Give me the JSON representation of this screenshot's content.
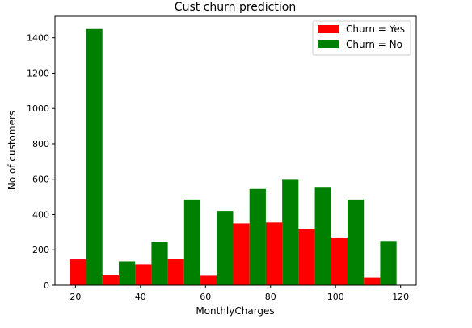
{
  "chart_data": {
    "type": "bar",
    "title": "Cust churn prediction",
    "xlabel": "MonthlyCharges",
    "ylabel": "No of customers",
    "xlim": [
      13.7,
      124.8
    ],
    "ylim": [
      0,
      1522
    ],
    "xticks": [
      20,
      40,
      60,
      80,
      100,
      120
    ],
    "yticks": [
      0,
      200,
      400,
      600,
      800,
      1000,
      1200,
      1400
    ],
    "grid": false,
    "legend_position": "top-right",
    "bins": [
      [
        18.25,
        28.3
      ],
      [
        28.3,
        38.35
      ],
      [
        38.35,
        48.4
      ],
      [
        48.4,
        58.45
      ],
      [
        58.45,
        68.5
      ],
      [
        68.5,
        78.55
      ],
      [
        78.55,
        88.6
      ],
      [
        88.6,
        98.65
      ],
      [
        98.65,
        108.7
      ],
      [
        108.7,
        118.75
      ]
    ],
    "series": [
      {
        "name": "Churn = Yes",
        "color": "#ff0000",
        "values": [
          146,
          55,
          117,
          150,
          53,
          350,
          355,
          320,
          270,
          43
        ]
      },
      {
        "name": "Churn = No",
        "color": "#008000",
        "values": [
          1450,
          135,
          245,
          485,
          420,
          545,
          597,
          552,
          485,
          250
        ]
      }
    ]
  }
}
